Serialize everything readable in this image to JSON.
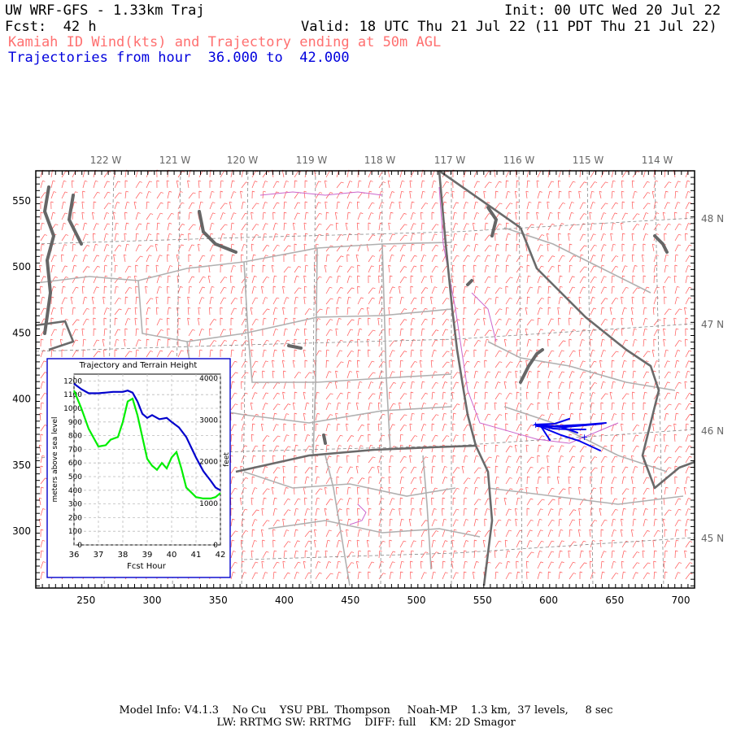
{
  "header": {
    "model": "UW WRF-GFS - 1.33km Traj",
    "init": "Init: 00 UTC Wed 20 Jul 22",
    "fcst": "Fcst:  42 h",
    "valid": "Valid: 18 UTC Thu 21 Jul 22 (11 PDT Thu 21 Jul 22)",
    "subtitle": "Kamiah ID Wind(kts) and Trajectory ending at 50m AGL",
    "traj_hours": "Trajectories from hour  36.000 to  42.000"
  },
  "map": {
    "lon_labels": [
      "122 W",
      "121 W",
      "120 W",
      "119 W",
      "118 W",
      "117 W",
      "116 W",
      "115 W",
      "114 W"
    ],
    "lat_labels": [
      "48 N",
      "47 N",
      "46 N",
      "45 N"
    ],
    "x_ticks": [
      "250",
      "300",
      "350",
      "400",
      "450",
      "500",
      "550",
      "600",
      "650",
      "700"
    ],
    "y_ticks": [
      "550",
      "500",
      "450",
      "400",
      "350",
      "300"
    ],
    "colors": {
      "state_border": "#666666",
      "county": "#aaaaaa",
      "wind": "#ff5555",
      "river": "#cc66cc",
      "trajectory": "#0000ee"
    }
  },
  "inset": {
    "title": "Trajectory and Terrain Height",
    "xlabel": "Fcst Hour",
    "ylabel_left": "meters above sea level",
    "ylabel_right": "feet",
    "chart_data": {
      "type": "line",
      "x_ticks": [
        "36",
        "37",
        "38",
        "39",
        "40",
        "41",
        "42"
      ],
      "y_left_ticks": [
        "0",
        "100",
        "200",
        "300",
        "400",
        "500",
        "600",
        "700",
        "800",
        "900",
        "1000",
        "1100",
        "1200"
      ],
      "y_right_ticks": [
        "0",
        "1000",
        "2000",
        "3000",
        "4000"
      ],
      "xlim": [
        36,
        42
      ],
      "ylim_left": [
        0,
        1250
      ],
      "series": [
        {
          "color": "#0000cc",
          "x": [
            36,
            36.3,
            36.6,
            37,
            37.3,
            37.6,
            38,
            38.2,
            38.4,
            38.6,
            38.8,
            39,
            39.2,
            39.5,
            39.8,
            40,
            40.3,
            40.6,
            41,
            41.3,
            41.6,
            41.8,
            42
          ],
          "y": [
            1180,
            1140,
            1110,
            1110,
            1115,
            1120,
            1120,
            1130,
            1115,
            1050,
            960,
            930,
            950,
            920,
            930,
            900,
            860,
            790,
            640,
            540,
            470,
            420,
            400
          ]
        },
        {
          "color": "#00ee00",
          "x": [
            36,
            36.3,
            36.6,
            37,
            37.3,
            37.5,
            37.8,
            38,
            38.2,
            38.4,
            38.6,
            38.8,
            39,
            39.2,
            39.4,
            39.6,
            39.8,
            40,
            40.2,
            40.4,
            40.6,
            41,
            41.3,
            41.6,
            41.8,
            42
          ],
          "y": [
            1130,
            1000,
            850,
            720,
            730,
            770,
            790,
            900,
            1050,
            1070,
            950,
            790,
            630,
            580,
            550,
            600,
            560,
            640,
            680,
            560,
            420,
            350,
            340,
            340,
            350,
            380
          ]
        }
      ]
    }
  },
  "footer": {
    "line1": "Model Info: V4.1.3    No Cu    YSU PBL  Thompson     Noah-MP    1.3 km,  37 levels,     8 sec",
    "line2": "LW: RRTMG SW: RRTMG    DIFF: full    KM: 2D Smagor"
  }
}
